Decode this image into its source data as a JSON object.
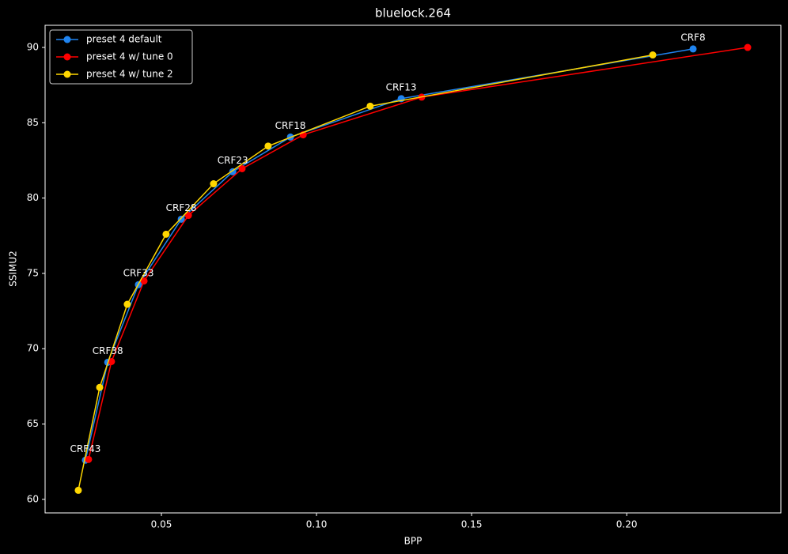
{
  "chart_data": {
    "type": "line",
    "title": "bluelock.264",
    "x_label": "BPP",
    "y_label": "SSIMU2",
    "xlim": [
      0.0125,
      0.2497
    ],
    "ylim": [
      59.1,
      91.47
    ],
    "xticks": [
      0.05,
      {
        "value": 0.1,
        "label": "0.10"
      },
      0.15,
      {
        "value": 0.2,
        "label": "0.20"
      }
    ],
    "yticks": [
      60,
      65,
      70,
      75,
      80,
      85,
      90
    ],
    "legend": "upper-left",
    "annotations": [
      "CRF8",
      "CRF13",
      "CRF18",
      "CRF23",
      "CRF28",
      "CRF33",
      "CRF38",
      "CRF43"
    ],
    "series": [
      {
        "name": "preset 4 default",
        "color": "#1f84f0",
        "x": [
          0.2214,
          0.1273,
          0.0916,
          0.073,
          0.0564,
          0.0426,
          0.0327,
          0.0255
        ],
        "values": [
          89.9,
          86.6,
          84.05,
          81.75,
          78.6,
          74.25,
          69.1,
          62.6
        ]
      },
      {
        "name": "preset 4 w/ tune 0",
        "color": "#ff0000",
        "x": [
          0.239,
          0.1339,
          0.0957,
          0.076,
          0.0587,
          0.0444,
          0.0339,
          0.0265
        ],
        "values": [
          90.0,
          86.7,
          84.2,
          81.95,
          78.85,
          74.5,
          69.15,
          62.65
        ]
      },
      {
        "name": "preset 4 w/ tune 2",
        "color": "#ffd700",
        "x": [
          0.2084,
          0.1173,
          0.0844,
          0.0668,
          0.0515,
          0.039,
          0.0301,
          0.0232
        ],
        "values": [
          89.5,
          86.1,
          83.45,
          80.95,
          77.6,
          72.95,
          67.43,
          60.6
        ]
      }
    ]
  }
}
